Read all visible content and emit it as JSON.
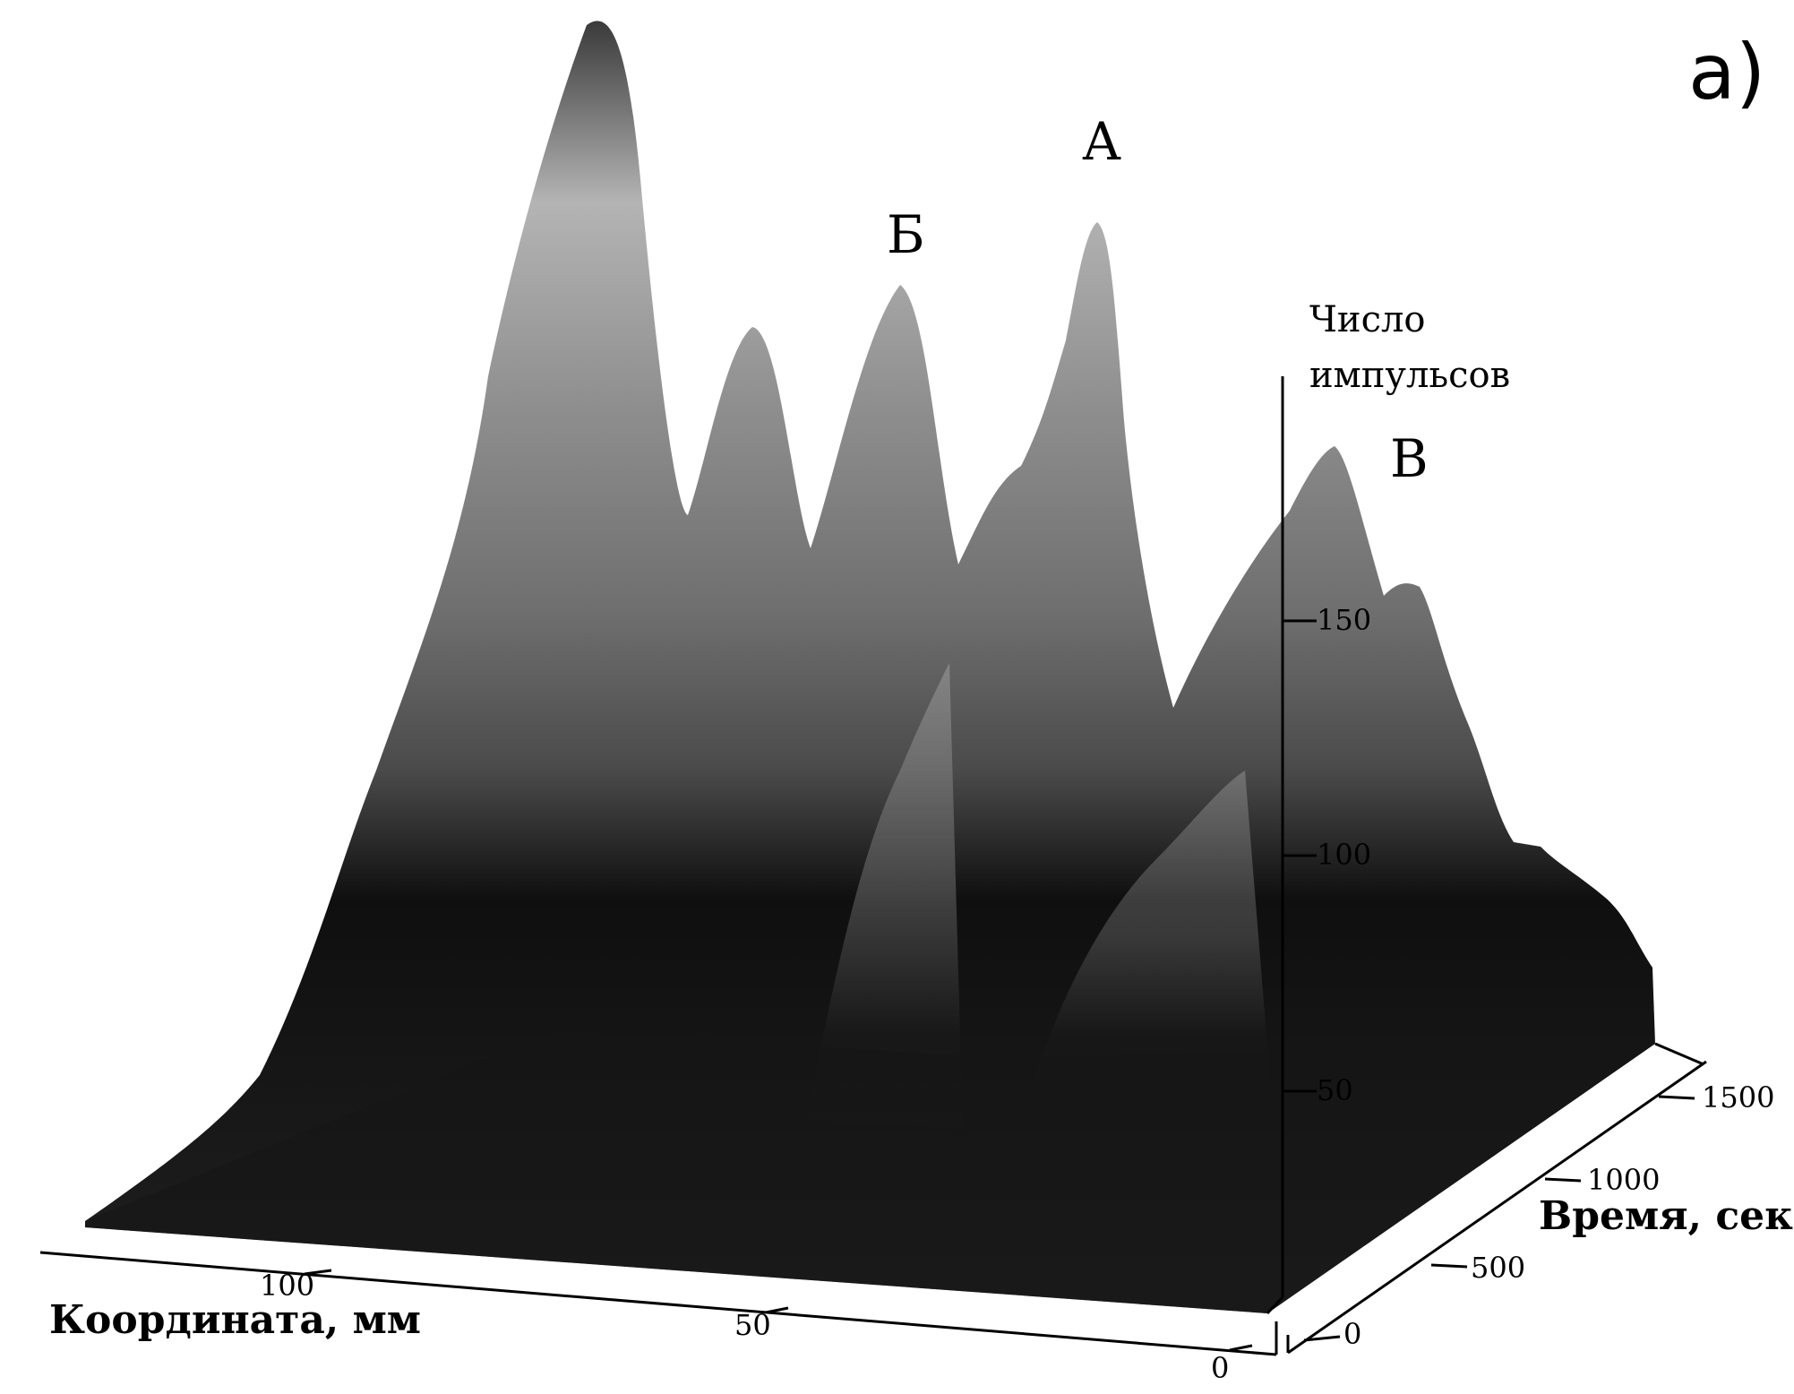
{
  "chart_data": {
    "type": "surface",
    "panel_label": "a)",
    "axes": {
      "x": {
        "label": "Координата, мм",
        "ticks": [
          {
            "value": 100,
            "label": "100"
          },
          {
            "value": 50,
            "label": "50"
          },
          {
            "value": 0,
            "label": "0"
          }
        ]
      },
      "y": {
        "label": "Время, сек",
        "ticks": [
          {
            "value": 0,
            "label": "0"
          },
          {
            "value": 500,
            "label": "500"
          },
          {
            "value": 1000,
            "label": "1000"
          },
          {
            "value": 1500,
            "label": "1500"
          }
        ]
      },
      "z": {
        "label_line1": "Число",
        "label_line2": "импульсов",
        "ticks": [
          {
            "value": 50,
            "label": "50"
          },
          {
            "value": 100,
            "label": "100"
          },
          {
            "value": 150,
            "label": "150"
          }
        ]
      }
    },
    "peak_labels": [
      "А",
      "Б",
      "В"
    ],
    "grid": false,
    "colormap": "grayscale"
  }
}
